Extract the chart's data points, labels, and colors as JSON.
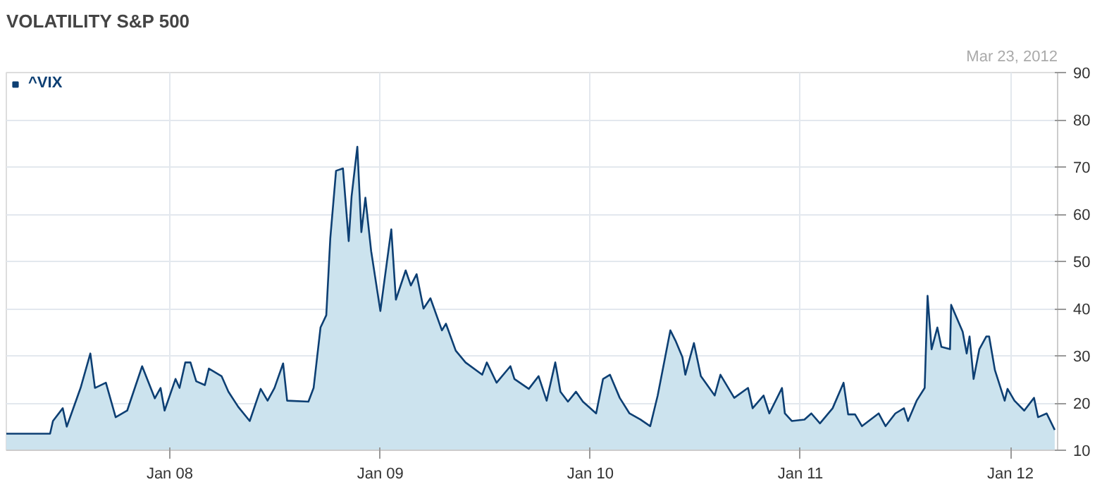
{
  "chart_data": {
    "type": "area",
    "title": "VOLATILITY S&P 500",
    "annotations": [
      "Mar 23, 2012"
    ],
    "x": [
      "2007-03-23",
      "2007-03-26",
      "2007-06-07",
      "2007-06-12",
      "2007-06-29",
      "2007-07-06",
      "2007-07-30",
      "2007-08-16",
      "2007-08-24",
      "2007-09-12",
      "2007-09-29",
      "2007-10-19",
      "2007-11-14",
      "2007-12-06",
      "2007-12-16",
      "2007-12-23",
      "2008-01-11",
      "2008-01-18",
      "2008-01-28",
      "2008-02-06",
      "2008-02-16",
      "2008-03-02",
      "2008-03-09",
      "2008-03-31",
      "2008-04-12",
      "2008-04-29",
      "2008-05-19",
      "2008-06-07",
      "2008-06-19",
      "2008-07-01",
      "2008-07-16",
      "2008-07-23",
      "2008-08-29",
      "2008-09-07",
      "2008-09-19",
      "2008-09-29",
      "2008-10-06",
      "2008-10-16",
      "2008-10-28",
      "2008-11-07",
      "2008-11-12",
      "2008-11-22",
      "2008-11-29",
      "2008-12-06",
      "2008-12-16",
      "2009-01-01",
      "2009-01-20",
      "2009-01-28",
      "2009-02-14",
      "2009-02-23",
      "2009-03-05",
      "2009-03-17",
      "2009-03-29",
      "2009-04-18",
      "2009-04-25",
      "2009-05-12",
      "2009-05-29",
      "2009-06-27",
      "2009-07-05",
      "2009-07-22",
      "2009-08-15",
      "2009-08-22",
      "2009-09-16",
      "2009-10-03",
      "2009-10-17",
      "2009-11-01",
      "2009-11-10",
      "2009-11-23",
      "2009-12-07",
      "2009-12-19",
      "2010-01-11",
      "2010-01-23",
      "2010-02-04",
      "2010-02-21",
      "2010-03-10",
      "2010-03-29",
      "2010-04-15",
      "2010-04-28",
      "2010-05-20",
      "2010-05-29",
      "2010-06-10",
      "2010-06-15",
      "2010-06-30",
      "2010-07-12",
      "2010-08-05",
      "2010-08-15",
      "2010-09-08",
      "2010-10-02",
      "2010-10-10",
      "2010-10-29",
      "2010-11-08",
      "2010-11-30",
      "2010-12-05",
      "2010-12-17",
      "2011-01-08",
      "2011-01-20",
      "2011-02-04",
      "2011-02-26",
      "2011-03-17",
      "2011-03-25",
      "2011-04-06",
      "2011-04-18",
      "2011-05-17",
      "2011-05-29",
      "2011-06-15",
      "2011-06-30",
      "2011-07-07",
      "2011-07-22",
      "2011-08-05",
      "2011-08-10",
      "2011-08-17",
      "2011-08-27",
      "2011-09-03",
      "2011-09-18",
      "2011-09-20",
      "2011-10-10",
      "2011-10-17",
      "2011-10-22",
      "2011-10-29",
      "2011-11-08",
      "2011-11-20",
      "2011-11-25",
      "2011-12-05",
      "2011-12-22",
      "2011-12-27",
      "2012-01-08",
      "2012-01-25",
      "2012-02-11",
      "2012-02-18",
      "2012-03-04",
      "2012-03-18"
    ],
    "series": [
      {
        "name": "^VIX",
        "color": "#0d3f73",
        "values": [
          13.5,
          13.5,
          13.5,
          16.2,
          18.9,
          15,
          23.2,
          30.5,
          23.2,
          24.3,
          17,
          18.4,
          27.8,
          21,
          23.2,
          18.4,
          25.1,
          23.2,
          28.6,
          28.6,
          24.6,
          23.8,
          27.3,
          25.7,
          22.4,
          19.2,
          16.2,
          23,
          20.5,
          23.2,
          28.4,
          20.5,
          20.3,
          23.2,
          36,
          38.6,
          54.9,
          69.2,
          69.7,
          54.3,
          63.8,
          74.3,
          56.2,
          63.5,
          52.2,
          39.5,
          56.8,
          41.9,
          48.1,
          44.9,
          47.3,
          40,
          42.2,
          35.4,
          36.8,
          31.1,
          28.6,
          26,
          28.6,
          24.3,
          27.8,
          25.1,
          23,
          25.7,
          20.5,
          28.6,
          22.4,
          20.3,
          22.4,
          20.3,
          17.8,
          25.1,
          26,
          21.1,
          17.8,
          16.5,
          15.1,
          21.6,
          35.4,
          33.2,
          29.7,
          26,
          32.7,
          25.7,
          21.6,
          26,
          21.1,
          23.2,
          18.9,
          21.6,
          17.8,
          23.2,
          17.8,
          16.2,
          16.5,
          17.8,
          15.7,
          18.9,
          24.3,
          17.6,
          17.6,
          15.1,
          17.8,
          15.1,
          17.8,
          18.9,
          16.2,
          20.5,
          23.2,
          42.7,
          31.4,
          36,
          31.9,
          31.4,
          40.8,
          35.1,
          30.5,
          34.1,
          25.1,
          31.4,
          34.1,
          34.1,
          27,
          20.5,
          23,
          20.5,
          18.4,
          21.1,
          17,
          17.8,
          14.3
        ]
      }
    ],
    "xlim": [
      "2007-03-23",
      "2012-03-23"
    ],
    "xticks": [
      {
        "value": "2008-01-01",
        "label": "Jan 08"
      },
      {
        "value": "2009-01-01",
        "label": "Jan 09"
      },
      {
        "value": "2010-01-01",
        "label": "Jan 10"
      },
      {
        "value": "2011-01-01",
        "label": "Jan 11"
      },
      {
        "value": "2012-01-01",
        "label": "Jan 12"
      }
    ],
    "ylim": [
      10,
      90
    ],
    "yticks": [
      10,
      20,
      30,
      40,
      50,
      60,
      70,
      80,
      90
    ],
    "grid": true,
    "legend": "top left"
  }
}
